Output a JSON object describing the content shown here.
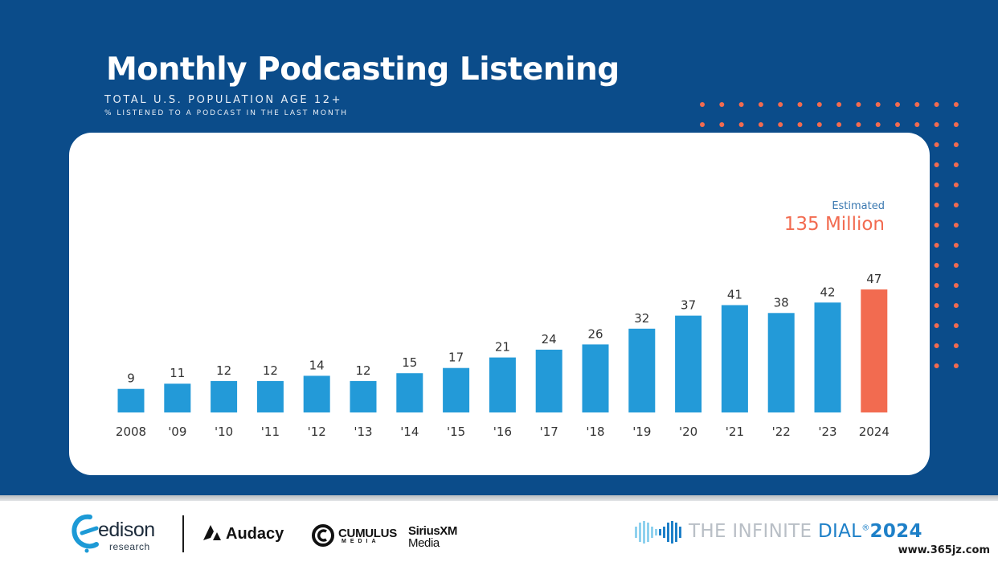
{
  "header": {
    "title": "Monthly Podcasting Listening",
    "subtitle": "TOTAL U.S. POPULATION AGE 12+",
    "subtitle2": "% LISTENED TO A PODCAST IN THE LAST MONTH"
  },
  "estimate": {
    "label": "Estimated",
    "value": "135 Million"
  },
  "chart_data": {
    "type": "bar",
    "title": "Monthly Podcasting Listening",
    "subtitle": "TOTAL U.S. POPULATION AGE 12+ — % LISTENED TO A PODCAST IN THE LAST MONTH",
    "xlabel": "",
    "ylabel": "",
    "categories": [
      "2008",
      "'09",
      "'10",
      "'11",
      "'12",
      "'13",
      "'14",
      "'15",
      "'16",
      "'17",
      "'18",
      "'19",
      "'20",
      "'21",
      "'22",
      "'23",
      "2024"
    ],
    "values": [
      9,
      11,
      12,
      12,
      14,
      12,
      15,
      17,
      21,
      24,
      26,
      32,
      37,
      41,
      38,
      42,
      47
    ],
    "ylim": [
      0,
      47
    ],
    "grid": false,
    "legend": "none",
    "bar_color": "#239ad8",
    "highlight_color": "#f26b50",
    "highlight_index": 16
  },
  "footer": {
    "edison_name": "edison",
    "edison_sub": "research",
    "audacy": "Audacy",
    "cumulus_name": "CUMULUS",
    "cumulus_sub": "MEDIA",
    "sirius_name": "SiriusXM",
    "sirius_sub": "Media",
    "dial_the": "THE INFINITE ",
    "dial_dial": "DIAL",
    "dial_reg": "®",
    "dial_year": "2024",
    "watermark": "www.365jz.com"
  },
  "colors": {
    "background": "#0b4c8a",
    "dot": "#f26b50",
    "accent": "#1e80c8"
  }
}
